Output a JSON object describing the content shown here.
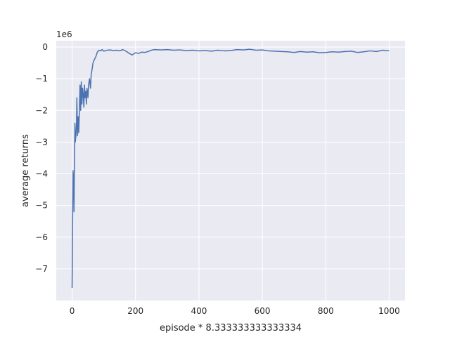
{
  "chart_data": {
    "type": "line",
    "title": "",
    "xlabel": "episode * 8.333333333333334",
    "ylabel": "average returns",
    "y_offset_label": "1e6",
    "y_scale_factor": 1000000,
    "xlim": [
      -50,
      1050
    ],
    "ylim": [
      -8000000,
      200000
    ],
    "x_ticks": [
      0,
      200,
      400,
      600,
      800,
      1000
    ],
    "x_tick_labels": [
      "0",
      "200",
      "400",
      "600",
      "800",
      "1000"
    ],
    "y_ticks": [
      0,
      -1000000,
      -2000000,
      -3000000,
      -4000000,
      -5000000,
      -6000000,
      -7000000
    ],
    "y_tick_labels": [
      "0",
      "−1",
      "−2",
      "−3",
      "−4",
      "−5",
      "−6",
      "−7"
    ],
    "grid": true,
    "background_color": "#eaeaf2",
    "grid_color": "#ffffff",
    "series": [
      {
        "color": "#4c72b0",
        "x": [
          0,
          2,
          3,
          5,
          6,
          7,
          9,
          10,
          12,
          14,
          15,
          17,
          19,
          21,
          23,
          25,
          27,
          29,
          31,
          33,
          35,
          37,
          39,
          41,
          43,
          45,
          47,
          50,
          52,
          55,
          58,
          60,
          63,
          66,
          70,
          75,
          80,
          85,
          90,
          95,
          100,
          110,
          120,
          130,
          140,
          150,
          160,
          170,
          180,
          190,
          195,
          200,
          210,
          220,
          230,
          240,
          250,
          260,
          280,
          300,
          320,
          340,
          360,
          380,
          400,
          420,
          440,
          460,
          480,
          500,
          520,
          540,
          560,
          580,
          600,
          620,
          640,
          660,
          680,
          700,
          720,
          740,
          760,
          780,
          800,
          820,
          840,
          860,
          880,
          900,
          920,
          940,
          960,
          980,
          1000
        ],
        "y": [
          -7600000,
          -5000000,
          -3900000,
          -4300000,
          -5200000,
          -4000000,
          -2400000,
          -3000000,
          -2800000,
          -2400000,
          -1600000,
          -2800000,
          -2200000,
          -2700000,
          -2000000,
          -1200000,
          -2000000,
          -1100000,
          -1800000,
          -1300000,
          -1500000,
          -1900000,
          -1200000,
          -1600000,
          -1400000,
          -1800000,
          -1300000,
          -1600000,
          -1200000,
          -1000000,
          -1300000,
          -900000,
          -700000,
          -500000,
          -400000,
          -300000,
          -150000,
          -100000,
          -120000,
          -80000,
          -130000,
          -100000,
          -90000,
          -110000,
          -100000,
          -120000,
          -80000,
          -130000,
          -200000,
          -250000,
          -210000,
          -180000,
          -200000,
          -160000,
          -170000,
          -140000,
          -100000,
          -80000,
          -90000,
          -80000,
          -100000,
          -90000,
          -110000,
          -100000,
          -120000,
          -110000,
          -130000,
          -100000,
          -120000,
          -110000,
          -80000,
          -90000,
          -70000,
          -100000,
          -90000,
          -120000,
          -130000,
          -140000,
          -150000,
          -170000,
          -140000,
          -160000,
          -150000,
          -180000,
          -170000,
          -150000,
          -160000,
          -140000,
          -130000,
          -170000,
          -150000,
          -120000,
          -140000,
          -100000,
          -120000
        ]
      }
    ]
  }
}
